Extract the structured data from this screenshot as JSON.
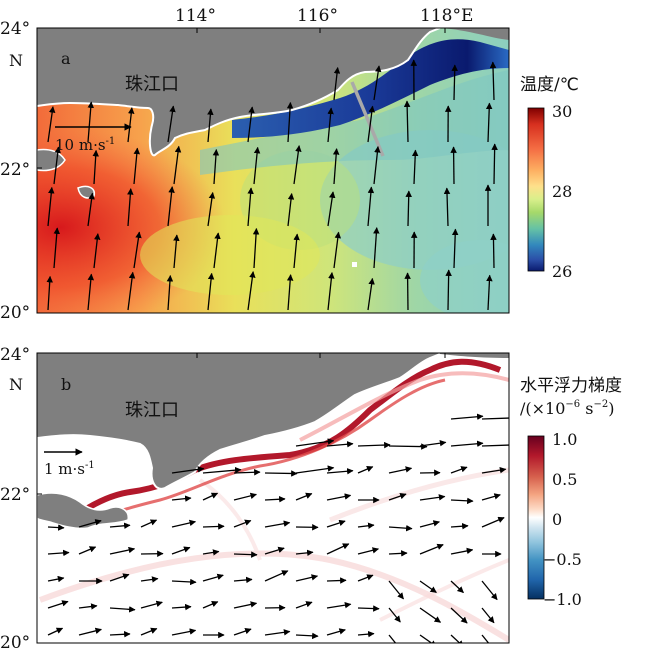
{
  "panel_a": {
    "label": "a",
    "place_label": "珠江口",
    "lat_ticks": [
      "24°",
      "22°",
      "20°"
    ],
    "lon_ticks": [
      "114°",
      "116°",
      "118°E"
    ],
    "north_label": "N",
    "ref_vector": "10 m·s",
    "ref_vector_sup": "-1",
    "colorbar_title": "温度/℃",
    "colorbar_ticks": [
      "30",
      "28",
      "26"
    ],
    "colorbar_colors": [
      "#7f0000",
      "#d7301f",
      "#f46d43",
      "#fdae61",
      "#fee08b",
      "#d9ef8b",
      "#a6d96a",
      "#66c2a5",
      "#3288bd",
      "#2b4fa8",
      "#0a1a6e"
    ]
  },
  "panel_b": {
    "label": "b",
    "place_label": "珠江口",
    "lat_ticks": [
      "24°",
      "22°",
      "20°"
    ],
    "north_label": "N",
    "ref_vector": "1 m·s",
    "ref_vector_sup": "-1",
    "colorbar_title_line1": "水平浮力梯度",
    "colorbar_title_line2_prefix": "/(×10",
    "colorbar_title_line2_sup": "−6",
    "colorbar_title_line2_mid": " s",
    "colorbar_title_line2_sup2": "−2",
    "colorbar_title_line2_suffix": ")",
    "colorbar_ticks": [
      "1.0",
      "0.5",
      "0",
      "−0.5",
      "−1.0"
    ],
    "colorbar_colors": [
      "#67001f",
      "#b2182b",
      "#d6604d",
      "#f4a582",
      "#fddbc7",
      "#ffffff",
      "#d1e5f0",
      "#92c5de",
      "#4393c3",
      "#2166ac",
      "#053061"
    ]
  },
  "colors": {
    "land": "#7f7f7f",
    "coast": "#ffffff",
    "arrow": "#000000",
    "section_line": "#a9a9a9"
  }
}
